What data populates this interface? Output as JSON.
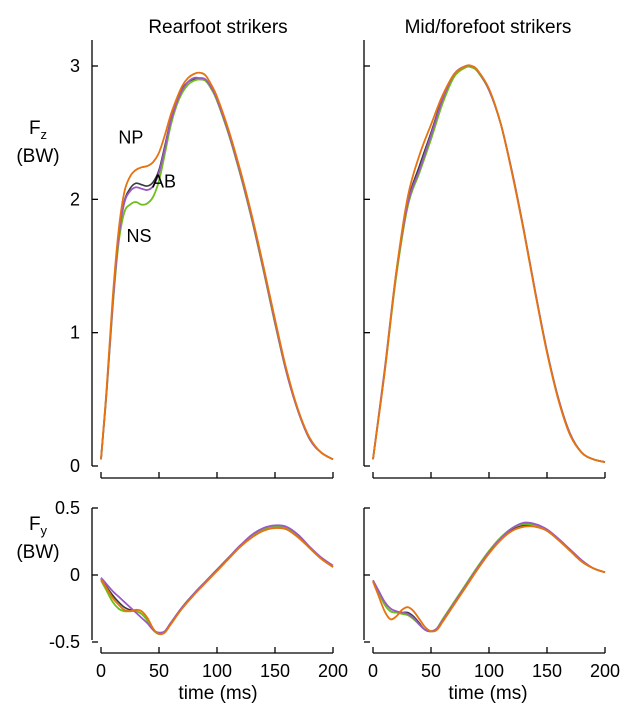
{
  "figure": {
    "column_titles": [
      "Rearfoot strikers",
      "Mid/forefoot strikers"
    ],
    "xlabel": "time (ms)",
    "fz_label": {
      "main": "F",
      "sub": "z",
      "unit": "(BW)"
    },
    "fy_label": {
      "main": "F",
      "sub": "y",
      "unit": "(BW)"
    }
  },
  "chart_data": [
    {
      "type": "line",
      "title": "Rearfoot strikers",
      "ylabel": "Fz (BW)",
      "xlim": [
        0,
        200
      ],
      "ylim": [
        0,
        3.2
      ],
      "xticks": [
        0,
        50,
        100,
        150,
        200
      ],
      "yticks": [
        0,
        1,
        2,
        3
      ],
      "ytick_labels": [
        "0",
        "1",
        "2",
        "3"
      ],
      "grid": false,
      "annotations": [
        {
          "text": "NP",
          "series": "NP"
        },
        {
          "text": "AB",
          "series": "AB"
        },
        {
          "text": "NS",
          "series": "NS"
        }
      ],
      "series": [
        {
          "name": "NP",
          "color": "#e6730f",
          "x": [
            0,
            5,
            10,
            15,
            20,
            25,
            30,
            35,
            40,
            45,
            50,
            55,
            60,
            65,
            70,
            75,
            80,
            85,
            90,
            95,
            100,
            110,
            120,
            130,
            140,
            150,
            160,
            170,
            180,
            190,
            200
          ],
          "y": [
            0.05,
            0.6,
            1.25,
            1.75,
            2.05,
            2.17,
            2.22,
            2.24,
            2.25,
            2.28,
            2.35,
            2.48,
            2.63,
            2.75,
            2.85,
            2.91,
            2.94,
            2.95,
            2.93,
            2.86,
            2.77,
            2.52,
            2.22,
            1.88,
            1.5,
            1.1,
            0.72,
            0.42,
            0.21,
            0.1,
            0.05
          ]
        },
        {
          "name": "AB",
          "color": "#9b59c6",
          "x": [
            0,
            5,
            10,
            15,
            20,
            25,
            30,
            35,
            40,
            45,
            50,
            55,
            60,
            65,
            70,
            75,
            80,
            85,
            90,
            95,
            100,
            110,
            120,
            130,
            140,
            150,
            160,
            170,
            180,
            190,
            200
          ],
          "y": [
            0.05,
            0.58,
            1.2,
            1.7,
            1.97,
            2.06,
            2.09,
            2.08,
            2.07,
            2.1,
            2.2,
            2.38,
            2.58,
            2.72,
            2.82,
            2.88,
            2.91,
            2.91,
            2.9,
            2.84,
            2.75,
            2.5,
            2.2,
            1.86,
            1.48,
            1.08,
            0.7,
            0.41,
            0.2,
            0.1,
            0.05
          ]
        },
        {
          "name": "NS",
          "color": "#6dbf1a",
          "x": [
            0,
            5,
            10,
            15,
            20,
            25,
            30,
            35,
            40,
            45,
            50,
            55,
            60,
            65,
            70,
            75,
            80,
            85,
            90,
            95,
            100,
            110,
            120,
            130,
            140,
            150,
            160,
            170,
            180,
            190,
            200
          ],
          "y": [
            0.05,
            0.57,
            1.18,
            1.66,
            1.9,
            1.96,
            1.98,
            1.96,
            1.97,
            2.02,
            2.14,
            2.34,
            2.55,
            2.7,
            2.8,
            2.86,
            2.89,
            2.9,
            2.89,
            2.83,
            2.74,
            2.49,
            2.19,
            1.85,
            1.47,
            1.07,
            0.7,
            0.41,
            0.2,
            0.1,
            0.05
          ]
        },
        {
          "name": "",
          "color": "#3a3a3a",
          "x": [
            0,
            5,
            10,
            15,
            20,
            25,
            30,
            35,
            40,
            45,
            50,
            55,
            60,
            65,
            70,
            75,
            80,
            85,
            90,
            95,
            100,
            110,
            120,
            130,
            140,
            150,
            160,
            170,
            180,
            190,
            200
          ],
          "y": [
            0.05,
            0.58,
            1.21,
            1.7,
            1.98,
            2.08,
            2.12,
            2.11,
            2.1,
            2.13,
            2.22,
            2.4,
            2.59,
            2.73,
            2.83,
            2.88,
            2.9,
            2.9,
            2.89,
            2.83,
            2.74,
            2.49,
            2.19,
            1.85,
            1.47,
            1.07,
            0.7,
            0.41,
            0.2,
            0.1,
            0.05
          ]
        }
      ]
    },
    {
      "type": "line",
      "title": "Mid/forefoot strikers",
      "ylabel": "Fz (BW)",
      "xlim": [
        0,
        200
      ],
      "ylim": [
        0,
        3.2
      ],
      "xticks": [
        0,
        50,
        100,
        150,
        200
      ],
      "yticks": [
        0,
        1,
        2,
        3
      ],
      "grid": false,
      "series": [
        {
          "name": "",
          "color": "#6dbf1a",
          "x": [
            0,
            10,
            20,
            30,
            40,
            50,
            60,
            70,
            80,
            85,
            90,
            100,
            110,
            120,
            130,
            140,
            150,
            160,
            170,
            180,
            190,
            200
          ],
          "y": [
            0.05,
            0.7,
            1.42,
            1.95,
            2.2,
            2.45,
            2.72,
            2.92,
            2.99,
            2.99,
            2.96,
            2.82,
            2.57,
            2.2,
            1.77,
            1.3,
            0.86,
            0.5,
            0.24,
            0.1,
            0.05,
            0.03
          ]
        },
        {
          "name": "",
          "color": "#9b59c6",
          "x": [
            0,
            10,
            20,
            30,
            40,
            50,
            60,
            70,
            80,
            85,
            90,
            100,
            110,
            120,
            130,
            140,
            150,
            160,
            170,
            180,
            190,
            200
          ],
          "y": [
            0.05,
            0.72,
            1.45,
            1.97,
            2.22,
            2.48,
            2.75,
            2.94,
            3.0,
            3.0,
            2.97,
            2.82,
            2.57,
            2.2,
            1.77,
            1.3,
            0.86,
            0.5,
            0.24,
            0.1,
            0.05,
            0.03
          ]
        },
        {
          "name": "",
          "color": "#e6730f",
          "x": [
            0,
            10,
            20,
            30,
            40,
            50,
            60,
            70,
            80,
            85,
            90,
            100,
            110,
            120,
            130,
            140,
            150,
            160,
            170,
            180,
            190,
            200
          ],
          "y": [
            0.05,
            0.7,
            1.45,
            2.02,
            2.33,
            2.56,
            2.78,
            2.94,
            3.0,
            3.0,
            2.97,
            2.83,
            2.57,
            2.19,
            1.76,
            1.29,
            0.85,
            0.49,
            0.23,
            0.1,
            0.05,
            0.03
          ]
        },
        {
          "name": "",
          "color": "#3a3a3a",
          "x": [
            0,
            10,
            20,
            30,
            40,
            50,
            60,
            70,
            80,
            85,
            90,
            100,
            110,
            120,
            130,
            140,
            150,
            160,
            170,
            180,
            190,
            200
          ],
          "y": [
            0.05,
            0.71,
            1.44,
            1.98,
            2.25,
            2.5,
            2.76,
            2.93,
            2.99,
            2.99,
            2.96,
            2.82,
            2.57,
            2.2,
            1.77,
            1.3,
            0.86,
            0.5,
            0.24,
            0.1,
            0.05,
            0.03
          ]
        }
      ]
    },
    {
      "type": "line",
      "title": "",
      "ylabel": "Fy (BW)",
      "xlabel": "time (ms)",
      "xlim": [
        0,
        200
      ],
      "ylim": [
        -0.5,
        0.5
      ],
      "xticks": [
        0,
        50,
        100,
        150,
        200
      ],
      "xtick_labels": [
        "0",
        "50",
        "100",
        "150",
        "200"
      ],
      "yticks": [
        -0.5,
        0,
        0.5
      ],
      "ytick_labels": [
        "-0.5",
        "0",
        "0.5"
      ],
      "grid": false,
      "series": [
        {
          "name": "NP",
          "color": "#e6730f",
          "x": [
            0,
            5,
            10,
            15,
            20,
            25,
            30,
            35,
            40,
            45,
            50,
            55,
            60,
            70,
            80,
            90,
            100,
            110,
            120,
            130,
            140,
            150,
            160,
            170,
            180,
            190,
            200
          ],
          "y": [
            -0.03,
            -0.1,
            -0.17,
            -0.22,
            -0.26,
            -0.27,
            -0.26,
            -0.27,
            -0.32,
            -0.4,
            -0.44,
            -0.43,
            -0.37,
            -0.25,
            -0.15,
            -0.06,
            0.03,
            0.12,
            0.21,
            0.28,
            0.33,
            0.35,
            0.34,
            0.28,
            0.2,
            0.12,
            0.06
          ]
        },
        {
          "name": "AB",
          "color": "#9b59c6",
          "x": [
            0,
            5,
            10,
            15,
            20,
            25,
            30,
            35,
            40,
            45,
            50,
            55,
            60,
            70,
            80,
            90,
            100,
            110,
            120,
            130,
            140,
            150,
            160,
            170,
            180,
            190,
            200
          ],
          "y": [
            -0.02,
            -0.07,
            -0.12,
            -0.16,
            -0.2,
            -0.24,
            -0.28,
            -0.32,
            -0.36,
            -0.41,
            -0.43,
            -0.42,
            -0.36,
            -0.24,
            -0.14,
            -0.05,
            0.04,
            0.13,
            0.22,
            0.3,
            0.35,
            0.37,
            0.36,
            0.3,
            0.21,
            0.13,
            0.07
          ]
        },
        {
          "name": "NS",
          "color": "#6dbf1a",
          "x": [
            0,
            5,
            10,
            15,
            20,
            25,
            30,
            35,
            40,
            45,
            50,
            55,
            60,
            70,
            80,
            90,
            100,
            110,
            120,
            130,
            140,
            150,
            160,
            170,
            180,
            190,
            200
          ],
          "y": [
            -0.04,
            -0.12,
            -0.2,
            -0.25,
            -0.27,
            -0.27,
            -0.27,
            -0.29,
            -0.34,
            -0.41,
            -0.44,
            -0.42,
            -0.36,
            -0.24,
            -0.14,
            -0.05,
            0.04,
            0.13,
            0.22,
            0.29,
            0.34,
            0.36,
            0.35,
            0.29,
            0.2,
            0.12,
            0.06
          ]
        },
        {
          "name": "",
          "color": "#3a3a3a",
          "x": [
            0,
            5,
            10,
            15,
            20,
            25,
            30,
            35,
            40,
            45,
            50,
            55,
            60,
            70,
            80,
            90,
            100,
            110,
            120,
            130,
            140,
            150,
            160,
            170,
            180,
            190,
            200
          ],
          "y": [
            -0.03,
            -0.09,
            -0.15,
            -0.2,
            -0.24,
            -0.26,
            -0.27,
            -0.29,
            -0.34,
            -0.41,
            -0.44,
            -0.42,
            -0.36,
            -0.24,
            -0.14,
            -0.05,
            0.04,
            0.13,
            0.22,
            0.29,
            0.34,
            0.36,
            0.35,
            0.29,
            0.2,
            0.12,
            0.06
          ]
        }
      ]
    },
    {
      "type": "line",
      "title": "",
      "ylabel": "Fy (BW)",
      "xlabel": "time (ms)",
      "xlim": [
        0,
        200
      ],
      "ylim": [
        -0.5,
        0.5
      ],
      "xticks": [
        0,
        50,
        100,
        150,
        200
      ],
      "xtick_labels": [
        "0",
        "50",
        "100",
        "150",
        "200"
      ],
      "yticks": [
        -0.5,
        0,
        0.5
      ],
      "grid": false,
      "series": [
        {
          "name": "",
          "color": "#6dbf1a",
          "x": [
            0,
            5,
            10,
            15,
            20,
            25,
            30,
            35,
            40,
            45,
            50,
            55,
            60,
            70,
            80,
            90,
            100,
            110,
            120,
            130,
            140,
            150,
            160,
            170,
            180,
            190,
            200
          ],
          "y": [
            -0.04,
            -0.13,
            -0.22,
            -0.27,
            -0.28,
            -0.29,
            -0.3,
            -0.33,
            -0.37,
            -0.41,
            -0.42,
            -0.4,
            -0.33,
            -0.2,
            -0.07,
            0.06,
            0.18,
            0.28,
            0.35,
            0.38,
            0.37,
            0.33,
            0.26,
            0.18,
            0.1,
            0.05,
            0.02
          ]
        },
        {
          "name": "",
          "color": "#9b59c6",
          "x": [
            0,
            5,
            10,
            15,
            20,
            25,
            30,
            35,
            40,
            45,
            50,
            55,
            60,
            70,
            80,
            90,
            100,
            110,
            120,
            130,
            140,
            150,
            160,
            170,
            180,
            190,
            200
          ],
          "y": [
            -0.04,
            -0.12,
            -0.2,
            -0.25,
            -0.27,
            -0.28,
            -0.29,
            -0.32,
            -0.37,
            -0.41,
            -0.42,
            -0.4,
            -0.34,
            -0.21,
            -0.08,
            0.05,
            0.17,
            0.27,
            0.35,
            0.39,
            0.38,
            0.34,
            0.27,
            0.19,
            0.11,
            0.05,
            0.02
          ]
        },
        {
          "name": "",
          "color": "#e6730f",
          "x": [
            0,
            5,
            10,
            15,
            20,
            25,
            30,
            35,
            40,
            45,
            50,
            55,
            60,
            70,
            80,
            90,
            100,
            110,
            120,
            130,
            140,
            150,
            160,
            170,
            180,
            190,
            200
          ],
          "y": [
            -0.05,
            -0.16,
            -0.27,
            -0.33,
            -0.31,
            -0.26,
            -0.24,
            -0.27,
            -0.33,
            -0.39,
            -0.42,
            -0.41,
            -0.35,
            -0.22,
            -0.09,
            0.04,
            0.16,
            0.26,
            0.33,
            0.36,
            0.36,
            0.33,
            0.26,
            0.18,
            0.1,
            0.05,
            0.02
          ]
        },
        {
          "name": "",
          "color": "#3a3a3a",
          "x": [
            0,
            5,
            10,
            15,
            20,
            25,
            30,
            35,
            40,
            45,
            50,
            55,
            60,
            70,
            80,
            90,
            100,
            110,
            120,
            130,
            140,
            150,
            160,
            170,
            180,
            190,
            200
          ],
          "y": [
            -0.04,
            -0.13,
            -0.22,
            -0.27,
            -0.28,
            -0.28,
            -0.28,
            -0.31,
            -0.36,
            -0.41,
            -0.42,
            -0.4,
            -0.34,
            -0.21,
            -0.08,
            0.05,
            0.17,
            0.27,
            0.34,
            0.37,
            0.37,
            0.33,
            0.26,
            0.18,
            0.1,
            0.05,
            0.02
          ]
        }
      ]
    }
  ]
}
